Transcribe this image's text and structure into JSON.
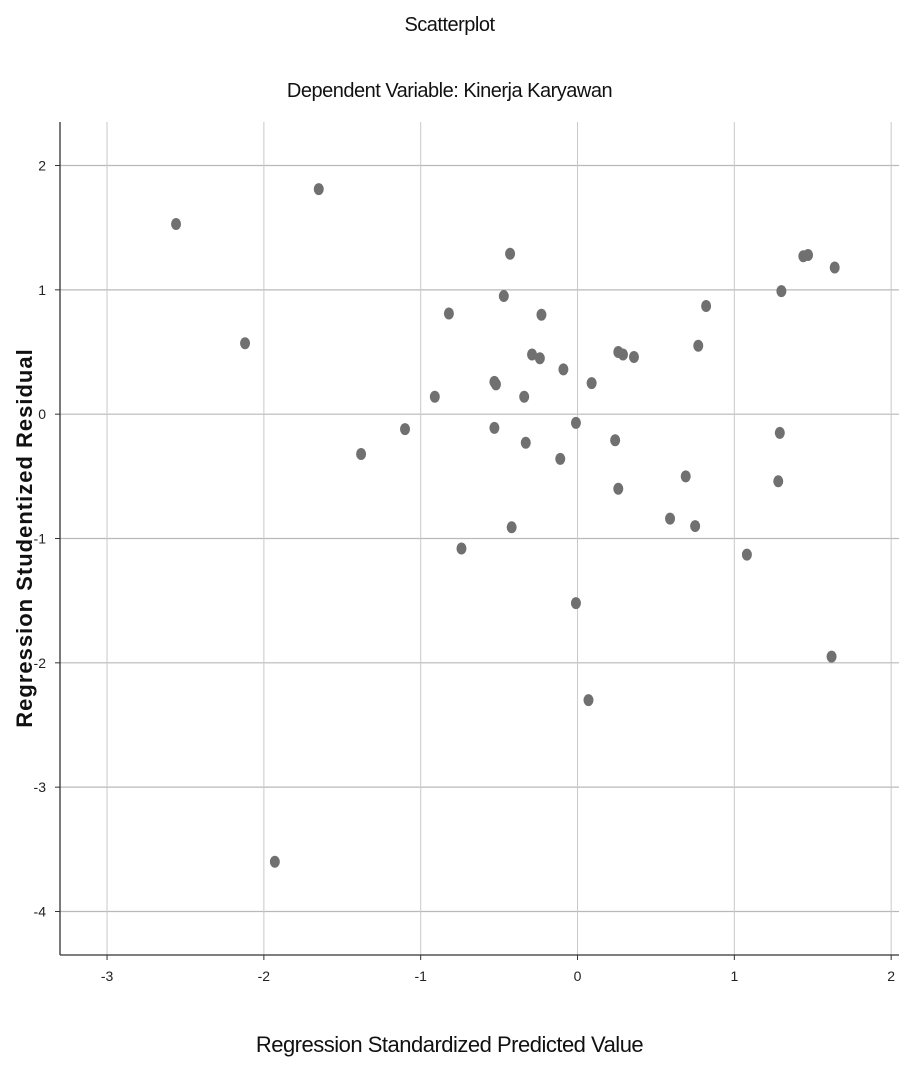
{
  "chart_data": {
    "type": "scatter",
    "title": "Scatterplot",
    "subtitle": "Dependent Variable: Kinerja Karyawan",
    "xlabel": "Regression Standardized Predicted Value",
    "ylabel": "Regression Studentized Residual",
    "xlim": [
      -3.3,
      2.05
    ],
    "ylim": [
      -4.35,
      2.35
    ],
    "xticks": [
      -3,
      -2,
      -1,
      0,
      1,
      2
    ],
    "yticks": [
      2,
      1,
      0,
      -1,
      -2,
      -3,
      -4
    ],
    "grid": true,
    "marker_color": "#707070",
    "points": [
      {
        "x": -2.56,
        "y": 1.53
      },
      {
        "x": -1.65,
        "y": 1.81
      },
      {
        "x": -2.12,
        "y": 0.57
      },
      {
        "x": -1.93,
        "y": -3.6
      },
      {
        "x": -1.38,
        "y": -0.32
      },
      {
        "x": -1.1,
        "y": -0.12
      },
      {
        "x": -0.91,
        "y": 0.14
      },
      {
        "x": -0.82,
        "y": 0.81
      },
      {
        "x": -0.74,
        "y": -1.08
      },
      {
        "x": -0.53,
        "y": 0.26
      },
      {
        "x": -0.52,
        "y": 0.24
      },
      {
        "x": -0.53,
        "y": -0.11
      },
      {
        "x": -0.47,
        "y": 0.95
      },
      {
        "x": -0.43,
        "y": 1.29
      },
      {
        "x": -0.42,
        "y": -0.91
      },
      {
        "x": -0.34,
        "y": 0.14
      },
      {
        "x": -0.33,
        "y": -0.23
      },
      {
        "x": -0.29,
        "y": 0.48
      },
      {
        "x": -0.24,
        "y": 0.45
      },
      {
        "x": -0.23,
        "y": 0.8
      },
      {
        "x": -0.11,
        "y": -0.36
      },
      {
        "x": -0.09,
        "y": 0.36
      },
      {
        "x": -0.01,
        "y": -0.07
      },
      {
        "x": -0.01,
        "y": -1.52
      },
      {
        "x": 0.07,
        "y": -2.3
      },
      {
        "x": 0.09,
        "y": 0.25
      },
      {
        "x": 0.24,
        "y": -0.21
      },
      {
        "x": 0.26,
        "y": 0.5
      },
      {
        "x": 0.29,
        "y": 0.48
      },
      {
        "x": 0.26,
        "y": -0.6
      },
      {
        "x": 0.36,
        "y": 0.46
      },
      {
        "x": 0.59,
        "y": -0.84
      },
      {
        "x": 0.69,
        "y": -0.5
      },
      {
        "x": 0.75,
        "y": -0.9
      },
      {
        "x": 0.77,
        "y": 0.55
      },
      {
        "x": 0.82,
        "y": 0.87
      },
      {
        "x": 1.08,
        "y": -1.13
      },
      {
        "x": 1.28,
        "y": -0.54
      },
      {
        "x": 1.29,
        "y": -0.15
      },
      {
        "x": 1.3,
        "y": 0.99
      },
      {
        "x": 1.44,
        "y": 1.27
      },
      {
        "x": 1.47,
        "y": 1.28
      },
      {
        "x": 1.62,
        "y": -1.95
      },
      {
        "x": 1.64,
        "y": 1.18
      }
    ]
  }
}
